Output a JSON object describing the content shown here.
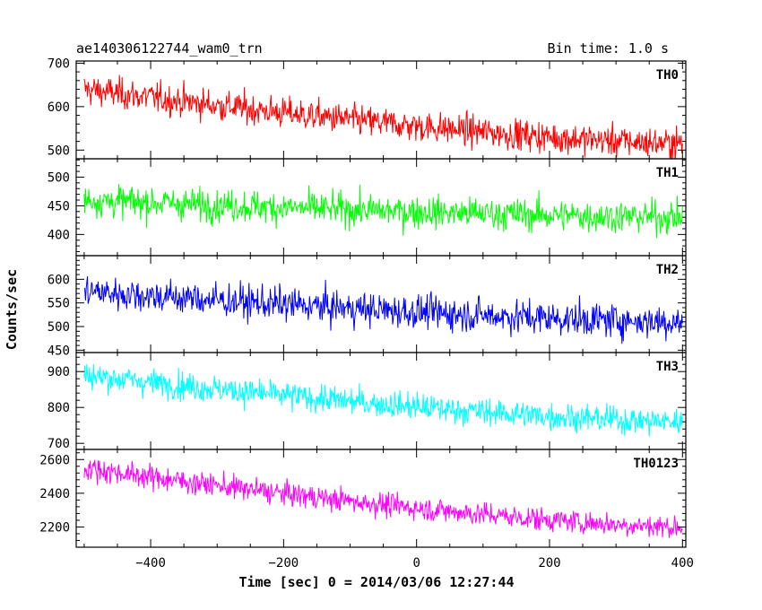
{
  "chart_data": {
    "type": "line",
    "title": "ae140306122744_wam0_trn",
    "bin_time": "Bin time: 1.0 s",
    "xlabel": "Time [sec] 0 = 2014/03/06 12:27:44",
    "ylabel": "Counts/sec",
    "xlim": [
      -512,
      405
    ],
    "x_range": [
      -500,
      400
    ],
    "x_ticks": [
      -400,
      -200,
      0,
      200,
      400
    ],
    "x_tick_labels": [
      "−400",
      "−200",
      "0",
      "200",
      "400"
    ],
    "series": [
      {
        "name": "TH0",
        "color": "#ff0000",
        "ylim": [
          480,
          705
        ],
        "start": 640,
        "end": 515,
        "noise": 28,
        "yticks": [
          500,
          600,
          700
        ],
        "ytick_labels": [
          "500",
          "600",
          "700"
        ]
      },
      {
        "name": "TH1",
        "color": "#00ff00",
        "ylim": [
          363,
          532
        ],
        "start": 460,
        "end": 430,
        "noise": 22,
        "yticks": [
          400,
          450,
          500
        ],
        "ytick_labels": [
          "400",
          "450",
          "500"
        ]
      },
      {
        "name": "TH2",
        "color": "#0000ff",
        "ylim": [
          445,
          650
        ],
        "start": 575,
        "end": 510,
        "noise": 28,
        "yticks": [
          450,
          500,
          550,
          600
        ],
        "ytick_labels": [
          "450",
          "500",
          "550",
          "600"
        ]
      },
      {
        "name": "TH3",
        "color": "#00ffff",
        "ylim": [
          683,
          953
        ],
        "start": 890,
        "end": 760,
        "noise": 30,
        "yticks": [
          700,
          800,
          900
        ],
        "ytick_labels": [
          "700",
          "800",
          "900"
        ]
      },
      {
        "name": "TH0123",
        "color": "#ff00ff",
        "ylim": [
          2080,
          2660
        ],
        "start": 2550,
        "end": 2200,
        "noise": 55,
        "yticks": [
          2200,
          2400,
          2600
        ],
        "ytick_labels": [
          "2200",
          "2400",
          "2600"
        ]
      }
    ]
  }
}
